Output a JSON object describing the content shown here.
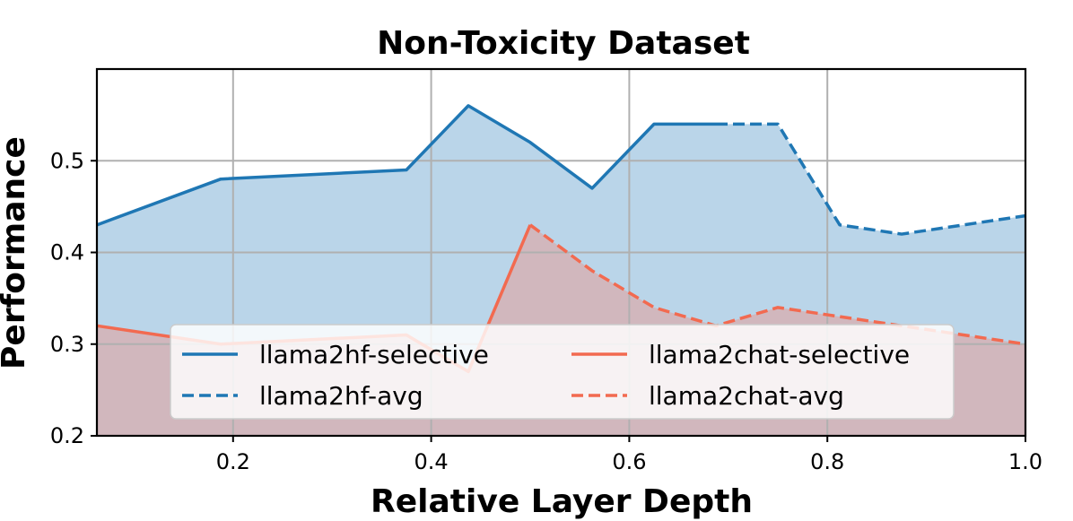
{
  "chart_data": {
    "type": "area",
    "title": "Non-Toxicity Dataset",
    "xlabel": "Relative Layer Depth",
    "ylabel": "Performance",
    "xlim": [
      0.0625,
      1.0
    ],
    "ylim": [
      0.2,
      0.6
    ],
    "xticks": [
      0.2,
      0.4,
      0.6,
      0.8,
      1.0
    ],
    "xtick_labels": [
      "0.2",
      "0.4",
      "0.6",
      "0.8",
      "1.0"
    ],
    "yticks": [
      0.2,
      0.3,
      0.4,
      0.5
    ],
    "ytick_labels": [
      "0.2",
      "0.3",
      "0.4",
      "0.5"
    ],
    "grid": true,
    "legend_placement": "lower-center",
    "series": [
      {
        "name": "llama2hf-selective",
        "style": "solid",
        "color": "#1f77b4",
        "fill": "#bad5e9",
        "x": [
          0.0625,
          0.1875,
          0.375,
          0.4375,
          0.5,
          0.5625,
          0.625,
          0.6875
        ],
        "y": [
          0.43,
          0.48,
          0.49,
          0.56,
          0.52,
          0.47,
          0.54,
          0.54
        ]
      },
      {
        "name": "llama2hf-avg",
        "style": "dashed",
        "color": "#1f77b4",
        "fill": "#bad5e9",
        "x": [
          0.6875,
          0.75,
          0.8125,
          0.875,
          1.0
        ],
        "y": [
          0.54,
          0.54,
          0.43,
          0.42,
          0.44
        ]
      },
      {
        "name": "llama2chat-selective",
        "style": "solid",
        "color": "#f26a50",
        "fill": "#d2b4b8",
        "x": [
          0.0625,
          0.1875,
          0.375,
          0.4375,
          0.5
        ],
        "y": [
          0.32,
          0.3,
          0.31,
          0.27,
          0.43
        ]
      },
      {
        "name": "llama2chat-avg",
        "style": "dashed",
        "color": "#f26a50",
        "fill": "#d2b4b8",
        "x": [
          0.5,
          0.5625,
          0.625,
          0.6875,
          0.75,
          0.8125,
          0.875,
          1.0
        ],
        "y": [
          0.43,
          0.38,
          0.34,
          0.32,
          0.34,
          0.33,
          0.32,
          0.3
        ]
      }
    ]
  }
}
